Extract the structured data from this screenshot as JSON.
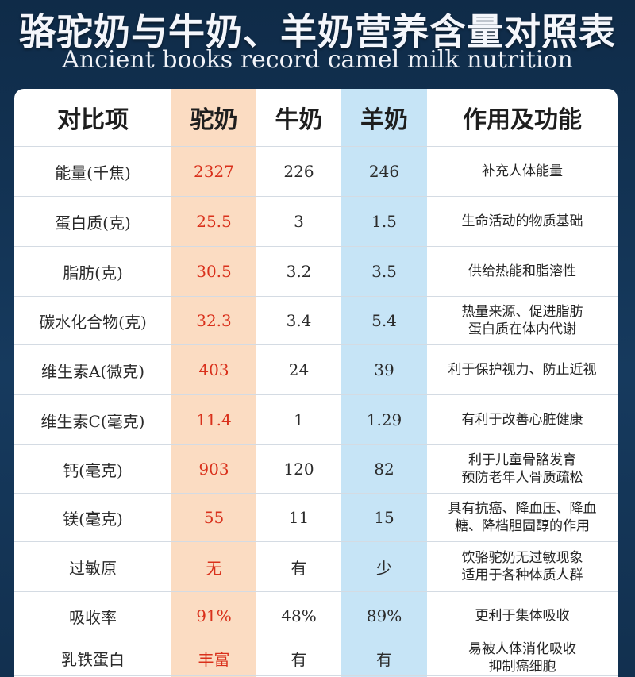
{
  "header": {
    "title": "骆驼奶与牛奶、羊奶营养含量对照表",
    "subtitle": "Ancient books record camel milk nutrition"
  },
  "columns": [
    "对比项",
    "驼奶",
    "牛奶",
    "羊奶",
    "作用及功能"
  ],
  "rows": [
    {
      "item": "能量(千焦)",
      "camel": "2327",
      "cow": "226",
      "goat": "246",
      "func": [
        "补充人体能量"
      ]
    },
    {
      "item": "蛋白质(克)",
      "camel": "25.5",
      "cow": "3",
      "goat": "1.5",
      "func": [
        "生命活动的物质基础"
      ]
    },
    {
      "item": "脂肪(克)",
      "camel": "30.5",
      "cow": "3.2",
      "goat": "3.5",
      "func": [
        "供给热能和脂溶性"
      ]
    },
    {
      "item": "碳水化合物(克)",
      "camel": "32.3",
      "cow": "3.4",
      "goat": "5.4",
      "func": [
        "热量来源、促进脂肪",
        "蛋白质在体内代谢"
      ]
    },
    {
      "item": "维生素A(微克)",
      "camel": "403",
      "cow": "24",
      "goat": "39",
      "func": [
        "利于保护视力、防止近视"
      ]
    },
    {
      "item": "维生素C(毫克)",
      "camel": "11.4",
      "cow": "1",
      "goat": "1.29",
      "func": [
        "有利于改善心脏健康"
      ]
    },
    {
      "item": "钙(毫克)",
      "camel": "903",
      "cow": "120",
      "goat": "82",
      "func": [
        "利于儿童骨骼发育",
        "预防老年人骨质疏松"
      ]
    },
    {
      "item": "镁(毫克)",
      "camel": "55",
      "cow": "11",
      "goat": "15",
      "func": [
        "具有抗癌、降血压、降血",
        "糖、降档胆固醇的作用"
      ]
    },
    {
      "item": "过敏原",
      "camel": "无",
      "cow": "有",
      "goat": "少",
      "func": [
        "饮骆驼奶无过敏现象",
        "适用于各种体质人群"
      ]
    },
    {
      "item": "吸收率",
      "camel": "91%",
      "cow": "48%",
      "goat": "89%",
      "func": [
        "更利于集体吸收"
      ]
    },
    {
      "item": "乳铁蛋白",
      "camel": "丰富",
      "cow": "有",
      "goat": "有",
      "func": [
        "易被人体消化吸收",
        "抑制癌细胞"
      ]
    }
  ]
}
